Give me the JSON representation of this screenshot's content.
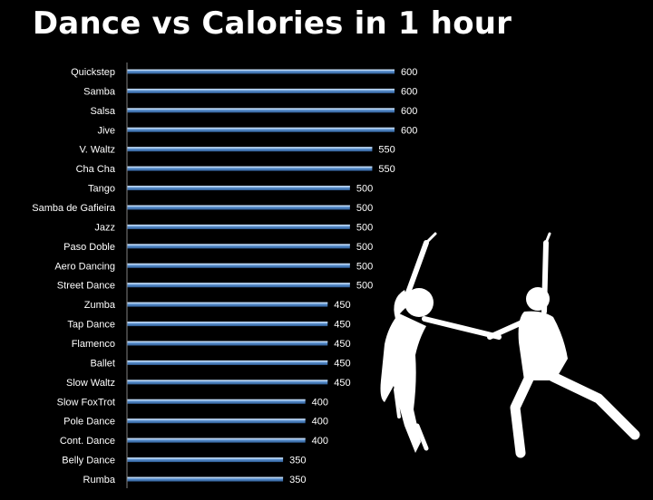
{
  "chart_data": {
    "type": "bar",
    "orientation": "horizontal",
    "title": "Dance vs Calories in 1 hour",
    "xlabel": "",
    "ylabel": "",
    "xlim": [
      0,
      600
    ],
    "grid": false,
    "legend": "none",
    "categories": [
      "Quickstep",
      "Samba",
      "Salsa",
      "Jive",
      "V. Waltz",
      "Cha Cha",
      "Tango",
      "Samba de Gafieira",
      "Jazz",
      "Paso Doble",
      "Aero Dancing",
      "Street Dance",
      "Zumba",
      "Tap Dance",
      "Flamenco",
      "Ballet",
      "Slow Waltz",
      "Slow FoxTrot",
      "Pole Dance",
      "Cont. Dance",
      "Belly Dance",
      "Rumba"
    ],
    "values": [
      600,
      600,
      600,
      600,
      550,
      550,
      500,
      500,
      500,
      500,
      500,
      500,
      450,
      450,
      450,
      450,
      450,
      400,
      400,
      400,
      350,
      350
    ]
  },
  "colors": {
    "background": "#000000",
    "bar": "#4f86c6",
    "bar_highlight": "#bcd6f2",
    "text": "#ffffff",
    "axis": "#7f7f7f",
    "silhouette": "#ffffff"
  },
  "illustration": {
    "icon": "dancing-couple-silhouette-icon"
  }
}
